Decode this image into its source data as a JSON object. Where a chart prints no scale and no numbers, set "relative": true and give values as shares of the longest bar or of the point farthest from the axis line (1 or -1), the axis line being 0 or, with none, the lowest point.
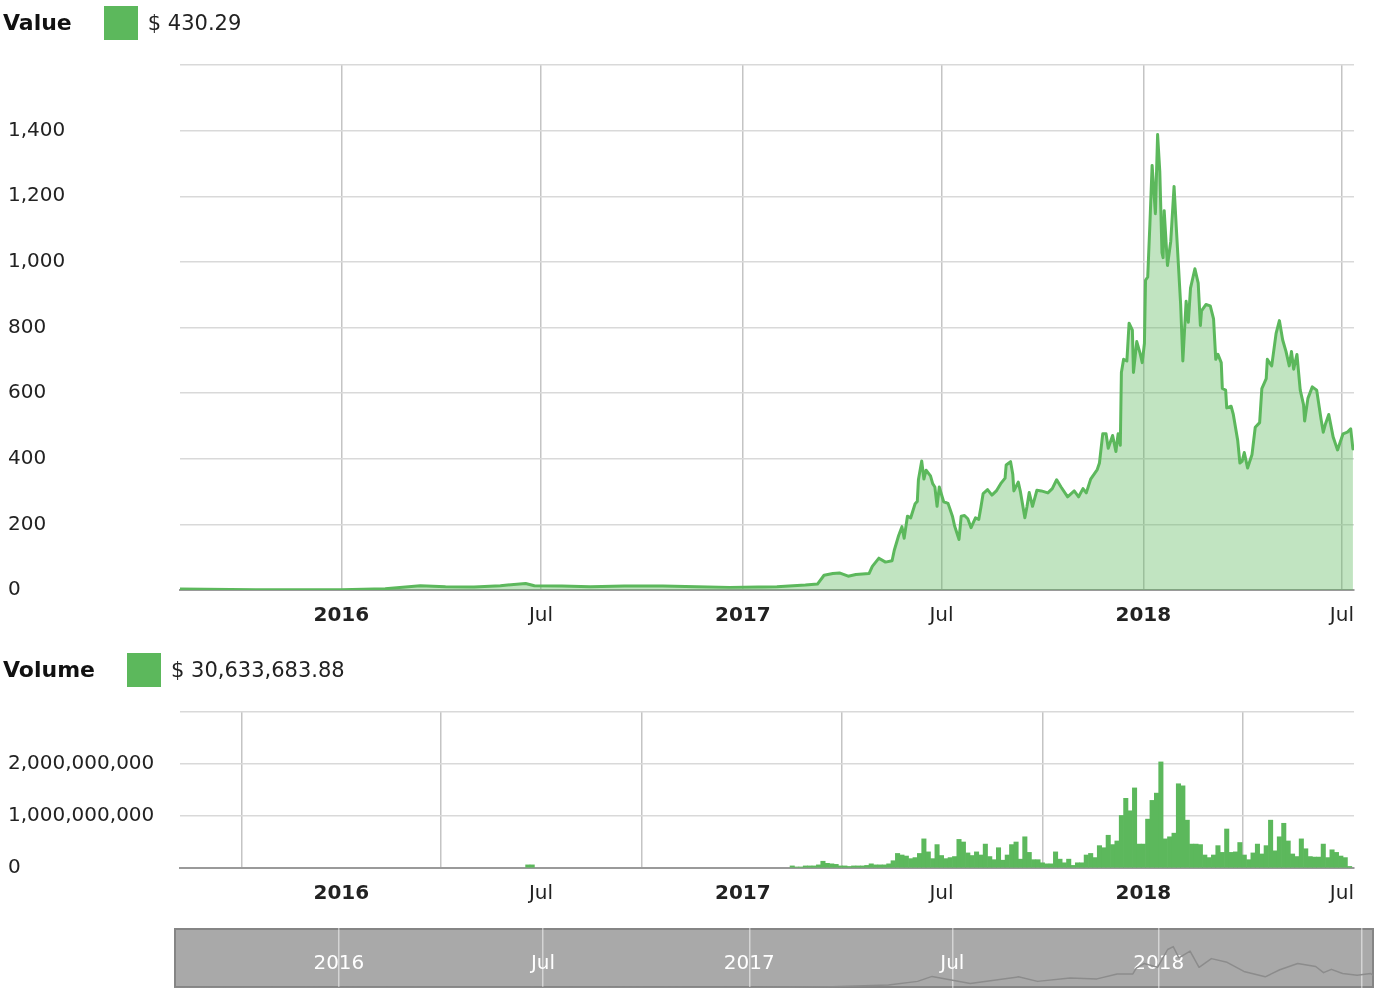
{
  "chart_data": [
    {
      "type": "area",
      "title": "Value",
      "legend": "top left",
      "grid": true,
      "x": [
        "2015-08-07",
        "2015-10-15",
        "2016-01-01",
        "2016-02-10",
        "2016-03-13",
        "2016-04-05",
        "2016-05-01",
        "2016-05-25",
        "2016-06-17",
        "2016-06-25",
        "2016-07-20",
        "2016-08-15",
        "2016-09-15",
        "2016-10-20",
        "2016-11-20",
        "2016-12-20",
        "2017-01-15",
        "2017-02-01",
        "2017-02-27",
        "2017-03-10",
        "2017-03-16",
        "2017-03-24",
        "2017-03-30",
        "2017-04-07",
        "2017-04-14",
        "2017-04-26",
        "2017-04-29",
        "2017-05-05",
        "2017-05-11",
        "2017-05-17",
        "2017-05-19",
        "2017-05-23",
        "2017-05-26",
        "2017-05-28",
        "2017-05-31",
        "2017-06-03",
        "2017-06-07",
        "2017-06-09",
        "2017-06-10",
        "2017-06-13",
        "2017-06-15",
        "2017-06-17",
        "2017-06-21",
        "2017-06-23",
        "2017-06-25",
        "2017-06-27",
        "2017-06-29",
        "2017-07-03",
        "2017-07-07",
        "2017-07-11",
        "2017-07-13",
        "2017-07-17",
        "2017-07-19",
        "2017-07-22",
        "2017-07-25",
        "2017-07-28",
        "2017-08-01",
        "2017-08-04",
        "2017-08-06",
        "2017-08-08",
        "2017-08-12",
        "2017-08-16",
        "2017-08-20",
        "2017-08-24",
        "2017-08-28",
        "2017-08-29",
        "2017-09-02",
        "2017-09-04",
        "2017-09-05",
        "2017-09-09",
        "2017-09-11",
        "2017-09-15",
        "2017-09-17",
        "2017-09-19",
        "2017-09-22",
        "2017-09-26",
        "2017-09-30",
        "2017-10-06",
        "2017-10-10",
        "2017-10-14",
        "2017-10-18",
        "2017-10-24",
        "2017-10-30",
        "2017-11-03",
        "2017-11-07",
        "2017-11-10",
        "2017-11-14",
        "2017-11-20",
        "2017-11-22",
        "2017-11-25",
        "2017-11-28",
        "2017-11-30",
        "2017-12-04",
        "2017-12-07",
        "2017-12-09",
        "2017-12-11",
        "2017-12-12",
        "2017-12-14",
        "2017-12-17",
        "2017-12-19",
        "2017-12-22",
        "2017-12-23",
        "2017-12-26",
        "2017-12-29",
        "2017-12-31",
        "2018-01-02",
        "2018-01-03",
        "2018-01-05",
        "2018-01-07",
        "2018-01-09",
        "2018-01-12",
        "2018-01-14",
        "2018-01-16",
        "2018-01-18",
        "2018-01-19",
        "2018-01-20",
        "2018-01-23",
        "2018-01-26",
        "2018-01-29",
        "2018-01-31",
        "2018-02-04",
        "2018-02-06",
        "2018-02-09",
        "2018-02-11",
        "2018-02-13",
        "2018-02-17",
        "2018-02-20",
        "2018-02-22",
        "2018-02-23",
        "2018-02-27",
        "2018-03-03",
        "2018-03-06",
        "2018-03-08",
        "2018-03-10",
        "2018-03-13",
        "2018-03-14",
        "2018-03-17",
        "2018-03-18",
        "2018-03-22",
        "2018-03-24",
        "2018-03-28",
        "2018-03-30",
        "2018-04-01",
        "2018-04-03",
        "2018-04-06",
        "2018-04-10",
        "2018-04-13",
        "2018-04-17",
        "2018-04-19",
        "2018-04-23",
        "2018-04-24",
        "2018-04-28",
        "2018-05-02",
        "2018-05-05",
        "2018-05-08",
        "2018-05-11",
        "2018-05-14",
        "2018-05-16",
        "2018-05-18",
        "2018-05-21",
        "2018-05-24",
        "2018-05-27",
        "2018-05-28",
        "2018-05-31",
        "2018-06-04",
        "2018-06-08",
        "2018-06-12",
        "2018-06-14",
        "2018-06-16",
        "2018-06-19",
        "2018-06-23",
        "2018-06-27",
        "2018-07-02",
        "2018-07-06",
        "2018-07-09",
        "2018-07-11"
      ],
      "series": [
        {
          "name": "$ 430.29",
          "color": "#5cb85c",
          "values": [
            3,
            1,
            1,
            4,
            13,
            10,
            9,
            13,
            20,
            13,
            12,
            10,
            12,
            12,
            10,
            8,
            9,
            10,
            15,
            18,
            45,
            50,
            52,
            42,
            47,
            50,
            72,
            97,
            85,
            89,
            121,
            166,
            193,
            158,
            225,
            220,
            263,
            270,
            336,
            393,
            338,
            365,
            348,
            324,
            314,
            255,
            314,
            269,
            264,
            225,
            195,
            154,
            225,
            227,
            217,
            190,
            220,
            215,
            253,
            294,
            306,
            289,
            302,
            324,
            341,
            381,
            391,
            353,
            302,
            329,
            299,
            220,
            255,
            297,
            255,
            304,
            302,
            296,
            309,
            336,
            314,
            284,
            302,
            284,
            309,
            296,
            338,
            367,
            387,
            476,
            476,
            432,
            471,
            422,
            476,
            441,
            663,
            703,
            698,
            813,
            792,
            663,
            757,
            722,
            693,
            752,
            944,
            954,
            1117,
            1294,
            1147,
            1388,
            1275,
            1028,
            1013,
            1156,
            989,
            1063,
            1230,
            1107,
            870,
            698,
            880,
            816,
            920,
            979,
            935,
            806,
            851,
            870,
            866,
            826,
            703,
            718,
            693,
            614,
            609,
            555,
            560,
            535,
            456,
            387,
            392,
            419,
            372,
            412,
            496,
            510,
            614,
            644,
            703,
            683,
            782,
            821,
            762,
            727,
            683,
            727,
            673,
            718,
            609,
            565,
            515,
            584,
            619,
            609,
            520,
            481,
            506,
            535,
            466,
            427,
            476,
            481,
            491,
            430
          ]
        }
      ],
      "xlim": [
        "2015-08-07",
        "2018-07-12"
      ],
      "xticks": [
        {
          "value": "2016-01-01",
          "label": "2016"
        },
        {
          "value": "2016-07-01",
          "label": "Jul"
        },
        {
          "value": "2017-01-01",
          "label": "2017"
        },
        {
          "value": "2017-07-01",
          "label": "Jul"
        },
        {
          "value": "2018-01-01",
          "label": "2018"
        },
        {
          "value": "2018-07-01",
          "label": "Jul"
        }
      ],
      "ylim": [
        0,
        1600
      ],
      "yticks": [
        0,
        200,
        400,
        600,
        800,
        {
          "value": 1000,
          "label": "1,000"
        },
        {
          "value": 1200,
          "label": "1,200"
        },
        {
          "value": 1400,
          "label": "1,400"
        },
        {
          "value": 1600,
          "label": null
        }
      ]
    },
    {
      "type": "bar",
      "title": "Volume",
      "legend": "top left",
      "grid": true,
      "series": [
        {
          "name": "$ 30,633,683.88",
          "color": "#5cb85c",
          "x": [
            "2016-06-19",
            "2016-06-23",
            "2017-02-15",
            "2017-02-19",
            "2017-02-23",
            "2017-02-27",
            "2017-03-03",
            "2017-03-07",
            "2017-03-11",
            "2017-03-15",
            "2017-03-19",
            "2017-03-23",
            "2017-03-27",
            "2017-03-31",
            "2017-04-04",
            "2017-04-08",
            "2017-04-12",
            "2017-04-16",
            "2017-04-20",
            "2017-04-24",
            "2017-04-28",
            "2017-05-02",
            "2017-05-06",
            "2017-05-10",
            "2017-05-14",
            "2017-05-18",
            "2017-05-22",
            "2017-05-26",
            "2017-05-30",
            "2017-06-03",
            "2017-06-07",
            "2017-06-11",
            "2017-06-15",
            "2017-06-19",
            "2017-06-23",
            "2017-06-27",
            "2017-07-01",
            "2017-07-05",
            "2017-07-09",
            "2017-07-13",
            "2017-07-17",
            "2017-07-21",
            "2017-07-25",
            "2017-07-29",
            "2017-08-02",
            "2017-08-06",
            "2017-08-10",
            "2017-08-14",
            "2017-08-18",
            "2017-08-22",
            "2017-08-26",
            "2017-08-30",
            "2017-09-03",
            "2017-09-07",
            "2017-09-11",
            "2017-09-15",
            "2017-09-19",
            "2017-09-23",
            "2017-09-27",
            "2017-10-01",
            "2017-10-05",
            "2017-10-09",
            "2017-10-13",
            "2017-10-17",
            "2017-10-21",
            "2017-10-25",
            "2017-10-29",
            "2017-11-02",
            "2017-11-06",
            "2017-11-10",
            "2017-11-14",
            "2017-11-18",
            "2017-11-22",
            "2017-11-26",
            "2017-11-30",
            "2017-12-04",
            "2017-12-08",
            "2017-12-12",
            "2017-12-16",
            "2017-12-20",
            "2017-12-24",
            "2017-12-28",
            "2018-01-01",
            "2018-01-05",
            "2018-01-09",
            "2018-01-13",
            "2018-01-17",
            "2018-01-21",
            "2018-01-25",
            "2018-01-29",
            "2018-02-02",
            "2018-02-06",
            "2018-02-10",
            "2018-02-14",
            "2018-02-18",
            "2018-02-22",
            "2018-02-26",
            "2018-03-02",
            "2018-03-06",
            "2018-03-10",
            "2018-03-14",
            "2018-03-18",
            "2018-03-22",
            "2018-03-26",
            "2018-03-30",
            "2018-04-03",
            "2018-04-07",
            "2018-04-11",
            "2018-04-15",
            "2018-04-19",
            "2018-04-23",
            "2018-04-27",
            "2018-05-01",
            "2018-05-05",
            "2018-05-09",
            "2018-05-13",
            "2018-05-17",
            "2018-05-21",
            "2018-05-25",
            "2018-05-29",
            "2018-06-02",
            "2018-06-06",
            "2018-06-10",
            "2018-06-14",
            "2018-06-18",
            "2018-06-22",
            "2018-06-26",
            "2018-06-30",
            "2018-07-04",
            "2018-07-08"
          ],
          "values": [
            60000000,
            60000000,
            40000000,
            20000000,
            20000000,
            40000000,
            40000000,
            40000000,
            60000000,
            130000000,
            90000000,
            80000000,
            70000000,
            40000000,
            40000000,
            30000000,
            40000000,
            40000000,
            40000000,
            50000000,
            80000000,
            60000000,
            60000000,
            60000000,
            80000000,
            140000000,
            280000000,
            250000000,
            230000000,
            180000000,
            200000000,
            280000000,
            560000000,
            310000000,
            180000000,
            450000000,
            240000000,
            180000000,
            200000000,
            220000000,
            550000000,
            500000000,
            290000000,
            240000000,
            310000000,
            250000000,
            460000000,
            220000000,
            160000000,
            390000000,
            150000000,
            250000000,
            450000000,
            500000000,
            170000000,
            600000000,
            300000000,
            160000000,
            160000000,
            100000000,
            80000000,
            80000000,
            310000000,
            170000000,
            100000000,
            170000000,
            50000000,
            100000000,
            100000000,
            250000000,
            280000000,
            200000000,
            430000000,
            390000000,
            630000000,
            450000000,
            520000000,
            1010000000,
            1340000000,
            1100000000,
            1540000000,
            460000000,
            460000000,
            940000000,
            1300000000,
            1440000000,
            2040000000,
            560000000,
            600000000,
            670000000,
            1620000000,
            1580000000,
            920000000,
            460000000,
            460000000,
            450000000,
            250000000,
            200000000,
            250000000,
            430000000,
            300000000,
            750000000,
            300000000,
            310000000,
            490000000,
            250000000,
            160000000,
            290000000,
            460000000,
            270000000,
            430000000,
            920000000,
            330000000,
            600000000,
            860000000,
            520000000,
            270000000,
            220000000,
            560000000,
            370000000,
            220000000,
            210000000,
            210000000,
            460000000,
            200000000,
            350000000,
            300000000,
            230000000,
            200000000,
            30000000
          ]
        }
      ],
      "xlim": [
        "2015-08-07",
        "2018-07-12"
      ],
      "xticks": [
        {
          "value": "2016-01-01",
          "label": "2016"
        },
        {
          "value": "2016-07-01",
          "label": "Jul"
        },
        {
          "value": "2017-01-01",
          "label": "2017"
        },
        {
          "value": "2017-07-01",
          "label": "Jul"
        },
        {
          "value": "2018-01-01",
          "label": "2018"
        },
        {
          "value": "2018-07-01",
          "label": "Jul"
        }
      ],
      "ylim": [
        0,
        3000000000
      ],
      "yticks": [
        0,
        {
          "value": 1000000000,
          "label": "1,000,000,000"
        },
        {
          "value": 2000000000,
          "label": "2,000,000,000"
        },
        {
          "value": 3000000000,
          "label": null
        }
      ]
    },
    {
      "type": "line",
      "relative": true,
      "grid": "x",
      "tick_labels": "x",
      "x": [
        "2015-08-07",
        "2016-03-13",
        "2016-06-17",
        "2017-01-01",
        "2017-03-16",
        "2017-05-05",
        "2017-05-31",
        "2017-06-13",
        "2017-07-17",
        "2017-08-29",
        "2017-09-15",
        "2017-10-14",
        "2017-11-07",
        "2017-11-25",
        "2017-12-09",
        "2017-12-12",
        "2017-12-19",
        "2017-12-31",
        "2018-01-09",
        "2018-01-14",
        "2018-01-19",
        "2018-01-29",
        "2018-02-06",
        "2018-02-17",
        "2018-03-03",
        "2018-03-18",
        "2018-04-06",
        "2018-04-19",
        "2018-05-05",
        "2018-05-21",
        "2018-05-28",
        "2018-06-04",
        "2018-06-14",
        "2018-06-27",
        "2018-07-09",
        "2018-07-11"
      ],
      "series": [
        {
          "color": "#8c8c8c",
          "values": [
            0.002,
            0.01,
            0.015,
            0.006,
            0.03,
            0.07,
            0.16,
            0.28,
            0.11,
            0.27,
            0.16,
            0.24,
            0.22,
            0.34,
            0.34,
            0.48,
            0.59,
            0.5,
            0.93,
            1,
            0.73,
            0.89,
            0.5,
            0.71,
            0.62,
            0.4,
            0.27,
            0.44,
            0.59,
            0.52,
            0.37,
            0.45,
            0.35,
            0.31,
            0.35,
            0.31
          ]
        }
      ],
      "xlim": [
        "2015-08-07",
        "2018-07-12"
      ],
      "xticks": [
        {
          "value": "2016-01-01",
          "label": "2016"
        },
        {
          "value": "2016-07-01",
          "label": "Jul"
        },
        {
          "value": "2017-01-01",
          "label": "2017"
        },
        {
          "value": "2017-07-01",
          "label": "Jul"
        },
        {
          "value": "2018-01-01",
          "label": "2018"
        },
        {
          "value": "2018-07-01",
          "label": null
        }
      ]
    }
  ]
}
